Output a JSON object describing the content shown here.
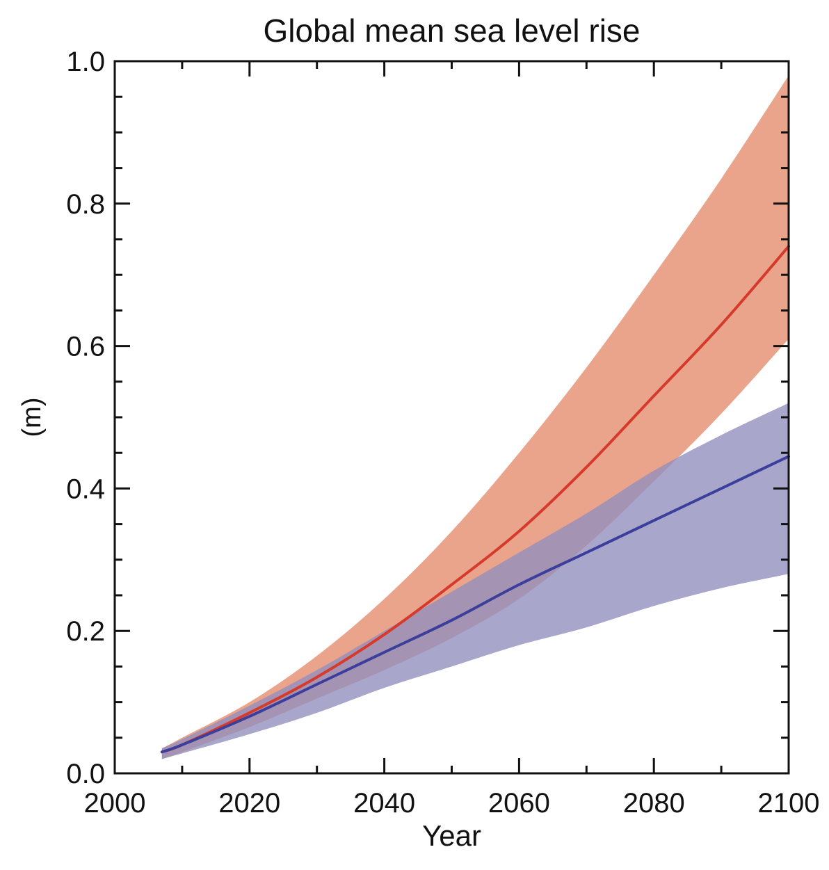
{
  "chart_data": {
    "type": "area",
    "title": "Global mean sea level rise",
    "xlabel": "Year",
    "ylabel": "(m)",
    "xlim": [
      2000,
      2100
    ],
    "ylim": [
      0.0,
      1.0
    ],
    "x_ticks": [
      2000,
      2020,
      2040,
      2060,
      2080,
      2100
    ],
    "y_ticks": [
      0.0,
      0.2,
      0.4,
      0.6,
      0.8,
      1.0
    ],
    "x_tick_labels": [
      "2000",
      "2020",
      "2040",
      "2060",
      "2080",
      "2100"
    ],
    "y_tick_labels": [
      "0.0",
      "0.2",
      "0.4",
      "0.6",
      "0.8",
      "1.0"
    ],
    "grid": false,
    "legend": "none",
    "series": [
      {
        "color": "#e07a5f",
        "band_color": "#e58a6c",
        "x": [
          2007,
          2010,
          2020,
          2030,
          2040,
          2050,
          2060,
          2070,
          2080,
          2090,
          2100
        ],
        "mean": [
          0.03,
          0.04,
          0.085,
          0.135,
          0.195,
          0.265,
          0.34,
          0.43,
          0.53,
          0.63,
          0.74
        ],
        "lower": [
          0.02,
          0.03,
          0.065,
          0.105,
          0.145,
          0.19,
          0.245,
          0.32,
          0.41,
          0.505,
          0.61
        ],
        "upper": [
          0.035,
          0.05,
          0.1,
          0.165,
          0.245,
          0.34,
          0.45,
          0.57,
          0.7,
          0.835,
          0.98
        ]
      },
      {
        "color": "#3b3f9b",
        "band_color": "#8f8ebd",
        "x": [
          2007,
          2010,
          2020,
          2030,
          2040,
          2050,
          2060,
          2070,
          2080,
          2090,
          2100
        ],
        "mean": [
          0.03,
          0.04,
          0.08,
          0.125,
          0.17,
          0.215,
          0.265,
          0.31,
          0.355,
          0.4,
          0.445
        ],
        "lower": [
          0.02,
          0.028,
          0.055,
          0.085,
          0.12,
          0.15,
          0.18,
          0.205,
          0.235,
          0.26,
          0.28
        ],
        "upper": [
          0.035,
          0.048,
          0.095,
          0.145,
          0.2,
          0.255,
          0.31,
          0.365,
          0.425,
          0.475,
          0.52
        ]
      }
    ]
  }
}
